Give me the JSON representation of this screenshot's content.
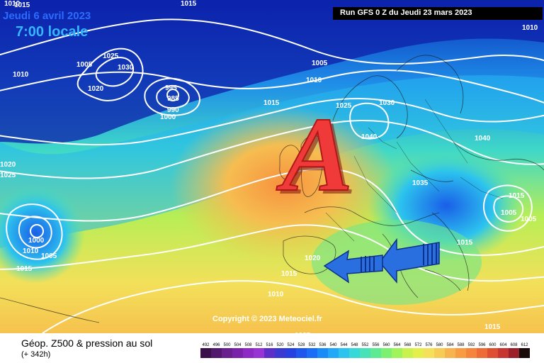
{
  "header": {
    "date": "Jeudi 6 avril 2023",
    "time": "7:00 locale",
    "run": "Run GFS 0 Z du Jeudi 23 mars 2023"
  },
  "footer": {
    "title": "Géop. Z500 & pression au sol",
    "subtitle": "(+ 342h)",
    "copyright": "Copyright © 2023 Meteociel.fr"
  },
  "scale_values": [
    "492",
    "496",
    "500",
    "504",
    "508",
    "512",
    "516",
    "520",
    "524",
    "528",
    "532",
    "536",
    "540",
    "544",
    "548",
    "552",
    "556",
    "560",
    "564",
    "568",
    "572",
    "576",
    "580",
    "584",
    "588",
    "592",
    "596",
    "600",
    "604",
    "608",
    "612"
  ],
  "scale_colors": [
    "#3b0f4a",
    "#51186d",
    "#6a1f8f",
    "#7b22aa",
    "#8d2ac4",
    "#9833d4",
    "#5d2ec8",
    "#3a39d0",
    "#2740e0",
    "#1e56ee",
    "#1a6ef6",
    "#1b8bf8",
    "#21a8f6",
    "#2cc3ee",
    "#38d8d8",
    "#48e2b8",
    "#5eea93",
    "#7cf071",
    "#a0f35a",
    "#c8f24e",
    "#e4ee4c",
    "#f4e05a",
    "#f6cc56",
    "#f7b44e",
    "#f89c44",
    "#f5853c",
    "#ee6a36",
    "#e04e32",
    "#c73530",
    "#9b1f2a",
    "#1a0a0a"
  ],
  "pressure_labels": [
    "1010",
    "1015",
    "1010",
    "1025",
    "1030",
    "1020",
    "1005",
    "995",
    "985",
    "990",
    "1000",
    "1005",
    "1010",
    "1015",
    "1025",
    "1030",
    "1040",
    "1040",
    "1035",
    "1020",
    "1025",
    "1015",
    "1005",
    "1010",
    "1010",
    "1015",
    "1005",
    "1020",
    "1015",
    "1010",
    "1005",
    "1015",
    "1015",
    "1015",
    "1005",
    "1000"
  ],
  "high_marker": "A"
}
